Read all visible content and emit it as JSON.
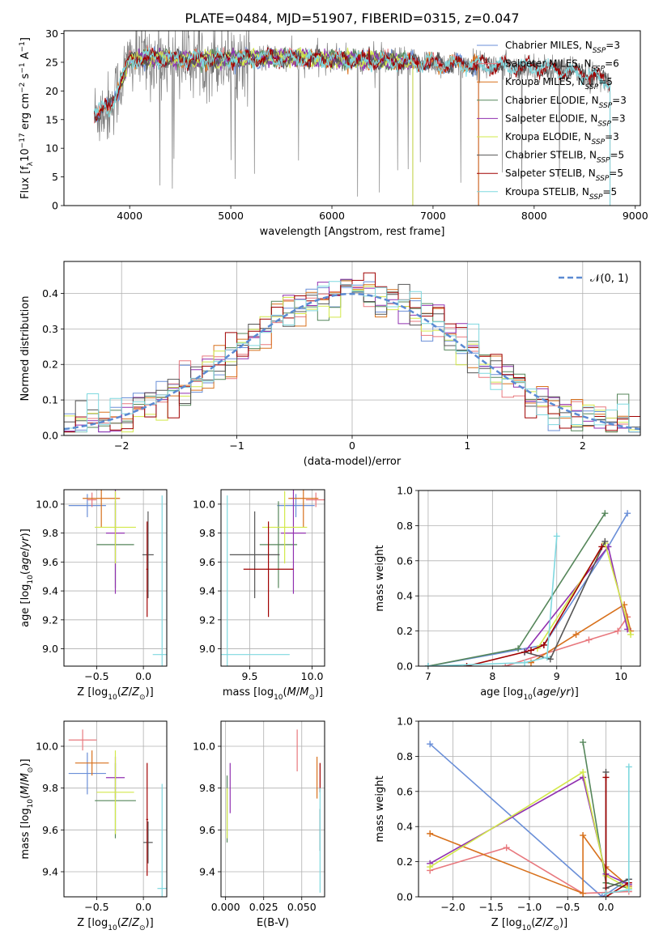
{
  "figure": {
    "title": "PLATE=0484, MJD=51907, FIBERID=0315, z=0.047"
  },
  "colors": {
    "Chabrier MILES": "#6a8fd8",
    "Salpeter MILES": "#e8787e",
    "Kroupa MILES": "#d8711c",
    "Chabrier ELODIE": "#55865a",
    "Salpeter ELODIE": "#9130b0",
    "Kroupa ELODIE": "#d2e84a",
    "Chabrier STELIB": "#555555",
    "Salpeter STELIB": "#a00000",
    "Kroupa STELIB": "#7fd8df",
    "data": "#808080",
    "normal": "#5b8ad2"
  },
  "chart_data": [
    {
      "id": "spectrum",
      "type": "line",
      "xlabel": "wavelength [Angstrom, rest frame]",
      "ylabel": "Flux [f_λ10^-17 erg cm^-2 s^-1 A^-1]",
      "xlim": [
        3350,
        9050
      ],
      "ylim": [
        0,
        30.5
      ],
      "xticks": [
        4000,
        5000,
        6000,
        7000,
        8000,
        9000
      ],
      "yticks": [
        0,
        5,
        10,
        15,
        20,
        25,
        30
      ],
      "legend": {
        "position": "right",
        "entries": [
          {
            "name": "Chabrier MILES",
            "nssp": "N_SSP=3"
          },
          {
            "name": "Salpeter MILES",
            "nssp": "N_SSP=6"
          },
          {
            "name": "Kroupa MILES",
            "nssp": "N_SSP=5"
          },
          {
            "name": "Chabrier ELODIE",
            "nssp": "N_SSP=3"
          },
          {
            "name": "Salpeter ELODIE",
            "nssp": "N_SSP=3"
          },
          {
            "name": "Kroupa ELODIE",
            "nssp": "N_SSP=3"
          },
          {
            "name": "Chabrier STELIB",
            "nssp": "N_SSP=5"
          },
          {
            "name": "Salpeter STELIB",
            "nssp": "N_SSP=5"
          },
          {
            "name": "Kroupa STELIB",
            "nssp": "N_SSP=5"
          }
        ]
      },
      "wavelength_range": [
        3650,
        8750
      ],
      "continuum": [
        [
          3650,
          16
        ],
        [
          3800,
          17
        ],
        [
          3900,
          21
        ],
        [
          4000,
          25.5
        ],
        [
          4200,
          25.8
        ],
        [
          4500,
          25.5
        ],
        [
          5000,
          25.6
        ],
        [
          5500,
          25.8
        ],
        [
          6000,
          25.5
        ],
        [
          6500,
          25.3
        ],
        [
          7000,
          24.8
        ],
        [
          7500,
          24.5
        ],
        [
          8000,
          24.2
        ],
        [
          8500,
          23
        ],
        [
          8750,
          21.5
        ]
      ],
      "model_ranges": {
        "Chabrier MILES": [
          3650,
          7450
        ],
        "Salpeter MILES": [
          3650,
          7450
        ],
        "Kroupa MILES": [
          3650,
          7450
        ],
        "Chabrier ELODIE": [
          3900,
          6800
        ],
        "Salpeter ELODIE": [
          3900,
          6800
        ],
        "Kroupa ELODIE": [
          3900,
          6800
        ],
        "Chabrier STELIB": [
          3650,
          8750
        ],
        "Salpeter STELIB": [
          3650,
          8750
        ],
        "Kroupa STELIB": [
          3650,
          8750
        ]
      }
    },
    {
      "id": "residuals",
      "type": "line",
      "xlabel": "(data-model)/error",
      "ylabel": "Normed distribution",
      "xlim": [
        -2.5,
        2.5
      ],
      "ylim": [
        0,
        0.49
      ],
      "xticks": [
        -2,
        -1,
        0,
        1,
        2
      ],
      "yticks": [
        0.0,
        0.1,
        0.2,
        0.3,
        0.4
      ],
      "grid": true,
      "normal_label": "𝒩(0, 1)",
      "bin_width": 0.1
    },
    {
      "id": "age-vs-Z",
      "type": "scatter",
      "xlabel": "Z [log10(Z/Z⊙)]",
      "ylabel": "age  [log10(age/yr)]",
      "xlim": [
        -0.85,
        0.25
      ],
      "ylim": [
        8.88,
        10.1
      ],
      "xticks": [
        -0.5,
        0.0
      ],
      "yticks": [
        9.0,
        9.2,
        9.4,
        9.6,
        9.8,
        10.0
      ],
      "grid": true,
      "points": [
        {
          "series": "Chabrier MILES",
          "x": -0.6,
          "xerr": 0.2,
          "y": 9.99,
          "yerr": 0.08
        },
        {
          "series": "Salpeter MILES",
          "x": -0.55,
          "xerr": 0.05,
          "y": 10.03,
          "yerr": 0.05
        },
        {
          "series": "Kroupa MILES",
          "x": -0.45,
          "xerr": 0.2,
          "y": 10.04,
          "yerr": 0.2
        },
        {
          "series": "Chabrier ELODIE",
          "x": -0.3,
          "xerr": 0.2,
          "y": 9.72,
          "yerr": 0.3
        },
        {
          "series": "Salpeter ELODIE",
          "x": -0.3,
          "xerr": 0.1,
          "y": 9.8,
          "yerr": 0.42
        },
        {
          "series": "Kroupa ELODIE",
          "x": -0.3,
          "xerr": 0.22,
          "y": 9.84,
          "yerr": 0.25
        },
        {
          "series": "Chabrier STELIB",
          "x": 0.05,
          "xerr": 0.06,
          "y": 9.65,
          "yerr": 0.3
        },
        {
          "series": "Salpeter STELIB",
          "x": 0.04,
          "xerr": 0.01,
          "y": 9.55,
          "yerr": 0.33
        },
        {
          "series": "Kroupa STELIB",
          "x": 0.2,
          "xerr": 0.1,
          "y": 8.96,
          "yerr": 1.1
        }
      ]
    },
    {
      "id": "age-vs-mass",
      "type": "scatter",
      "xlabel": "mass [log10(M/M⊙)]",
      "ylabel": "",
      "xlim": [
        9.27,
        10.1
      ],
      "ylim": [
        8.88,
        10.1
      ],
      "xticks": [
        9.5,
        10.0
      ],
      "yticks": [
        9.0,
        9.2,
        9.4,
        9.6,
        9.8,
        10.0
      ],
      "grid": true,
      "points": [
        {
          "series": "Chabrier MILES",
          "x": 9.87,
          "xerr": 0.15,
          "y": 9.99,
          "yerr": 0.08
        },
        {
          "series": "Salpeter MILES",
          "x": 10.03,
          "xerr": 0.08,
          "y": 10.03,
          "yerr": 0.05
        },
        {
          "series": "Kroupa MILES",
          "x": 9.93,
          "xerr": 0.12,
          "y": 10.04,
          "yerr": 0.2
        },
        {
          "series": "Chabrier ELODIE",
          "x": 9.73,
          "xerr": 0.15,
          "y": 9.72,
          "yerr": 0.3
        },
        {
          "series": "Salpeter ELODIE",
          "x": 9.85,
          "xerr": 0.1,
          "y": 9.8,
          "yerr": 0.42
        },
        {
          "series": "Kroupa ELODIE",
          "x": 9.78,
          "xerr": 0.18,
          "y": 9.84,
          "yerr": 0.25
        },
        {
          "series": "Chabrier STELIB",
          "x": 9.54,
          "xerr": 0.2,
          "y": 9.65,
          "yerr": 0.3
        },
        {
          "series": "Salpeter STELIB",
          "x": 9.65,
          "xerr": 0.2,
          "y": 9.55,
          "yerr": 0.33
        },
        {
          "series": "Kroupa STELIB",
          "x": 9.32,
          "xerr": 0.5,
          "y": 8.96,
          "yerr": 1.1
        }
      ]
    },
    {
      "id": "massweight-vs-age",
      "type": "line",
      "xlabel": "age  [log10(age/yr)]",
      "ylabel": "mass weight",
      "xlim": [
        6.85,
        10.3
      ],
      "ylim": [
        0,
        1.0
      ],
      "xticks": [
        7,
        8,
        9,
        10
      ],
      "yticks": [
        0.0,
        0.2,
        0.4,
        0.6,
        0.8,
        1.0
      ],
      "grid": true,
      "series": [
        {
          "name": "Chabrier MILES",
          "points": [
            [
              7.0,
              0.0
            ],
            [
              8.8,
              0.12
            ],
            [
              9.8,
              0.68
            ],
            [
              10.1,
              0.87
            ]
          ]
        },
        {
          "name": "Salpeter MILES",
          "points": [
            [
              8.2,
              0.0
            ],
            [
              9.5,
              0.15
            ],
            [
              9.95,
              0.2
            ],
            [
              10.1,
              0.28
            ]
          ]
        },
        {
          "name": "Kroupa MILES",
          "points": [
            [
              8.6,
              0.02
            ],
            [
              9.3,
              0.18
            ],
            [
              10.05,
              0.35
            ],
            [
              10.15,
              0.2
            ]
          ]
        },
        {
          "name": "Chabrier ELODIE",
          "points": [
            [
              7.0,
              0.0
            ],
            [
              8.4,
              0.1
            ],
            [
              9.75,
              0.87
            ]
          ]
        },
        {
          "name": "Salpeter ELODIE",
          "points": [
            [
              8.5,
              0.08
            ],
            [
              9.8,
              0.68
            ],
            [
              10.1,
              0.21
            ]
          ]
        },
        {
          "name": "Kroupa ELODIE",
          "points": [
            [
              8.7,
              0.1
            ],
            [
              9.75,
              0.7
            ],
            [
              10.15,
              0.18
            ]
          ]
        },
        {
          "name": "Chabrier STELIB",
          "points": [
            [
              8.5,
              0.08
            ],
            [
              8.9,
              0.04
            ],
            [
              9.75,
              0.71
            ]
          ]
        },
        {
          "name": "Salpeter STELIB",
          "points": [
            [
              7.6,
              0.0
            ],
            [
              8.6,
              0.09
            ],
            [
              8.8,
              0.12
            ],
            [
              9.7,
              0.68
            ]
          ]
        },
        {
          "name": "Kroupa STELIB",
          "points": [
            [
              7.0,
              0.0
            ],
            [
              8.5,
              0.02
            ],
            [
              8.85,
              0.05
            ],
            [
              9.0,
              0.74
            ]
          ]
        }
      ]
    },
    {
      "id": "mass-vs-Z",
      "type": "scatter",
      "xlabel": "Z [log10(Z/Z⊙)]",
      "ylabel": "mass [log10(M/M⊙)]",
      "xlim": [
        -0.85,
        0.25
      ],
      "ylim": [
        9.28,
        10.12
      ],
      "xticks": [
        -0.5,
        0.0
      ],
      "yticks": [
        9.4,
        9.6,
        9.8,
        10.0
      ],
      "grid": true,
      "points": [
        {
          "series": "Chabrier MILES",
          "x": -0.6,
          "xerr": 0.2,
          "y": 9.87,
          "yerr": 0.1
        },
        {
          "series": "Salpeter MILES",
          "x": -0.65,
          "xerr": 0.15,
          "y": 10.03,
          "yerr": 0.05
        },
        {
          "series": "Kroupa MILES",
          "x": -0.55,
          "xerr": 0.18,
          "y": 9.92,
          "yerr": 0.06
        },
        {
          "series": "Chabrier ELODIE",
          "x": -0.3,
          "xerr": 0.22,
          "y": 9.74,
          "yerr": 0.18
        },
        {
          "series": "Salpeter ELODIE",
          "x": -0.3,
          "xerr": 0.1,
          "y": 9.85,
          "yerr": 0.1
        },
        {
          "series": "Kroupa ELODIE",
          "x": -0.3,
          "xerr": 0.2,
          "y": 9.78,
          "yerr": 0.2
        },
        {
          "series": "Chabrier STELIB",
          "x": 0.05,
          "xerr": 0.05,
          "y": 9.54,
          "yerr": 0.1
        },
        {
          "series": "Salpeter STELIB",
          "x": 0.04,
          "xerr": 0.01,
          "y": 9.65,
          "yerr": 0.27
        },
        {
          "series": "Kroupa STELIB",
          "x": 0.2,
          "xerr": 0.05,
          "y": 9.32,
          "yerr": 0.5
        }
      ]
    },
    {
      "id": "mass-vs-ebv",
      "type": "scatter",
      "xlabel": "E(B-V)",
      "ylabel": "",
      "xlim": [
        -0.003,
        0.065
      ],
      "ylim": [
        9.28,
        10.12
      ],
      "xticks": [
        0.0,
        0.025,
        0.05
      ],
      "xticklabels": [
        "0.000",
        "0.025",
        "0.050"
      ],
      "yticks": [
        9.4,
        9.6,
        9.8,
        10.0
      ],
      "grid": true,
      "points": [
        {
          "series": "Salpeter ELODIE",
          "x": 0.003,
          "xerr": 0,
          "y": 9.8,
          "yerr": 0.12
        },
        {
          "series": "Chabrier ELODIE",
          "x": 0.001,
          "xerr": 0,
          "y": 9.7,
          "yerr": 0.16
        },
        {
          "series": "Kroupa ELODIE",
          "x": 0.001,
          "xerr": 0,
          "y": 9.68,
          "yerr": 0.12
        },
        {
          "series": "Salpeter MILES",
          "x": 0.047,
          "xerr": 0,
          "y": 9.98,
          "yerr": 0.1
        },
        {
          "series": "Kroupa MILES",
          "x": 0.06,
          "xerr": 0,
          "y": 9.85,
          "yerr": 0.1
        },
        {
          "series": "Salpeter STELIB",
          "x": 0.062,
          "xerr": 0,
          "y": 9.85,
          "yerr": 0.07
        },
        {
          "series": "Chabrier STELIB",
          "x": 0.062,
          "xerr": 0,
          "y": 9.6,
          "yerr": 0.1
        },
        {
          "series": "Kroupa STELIB",
          "x": 0.062,
          "xerr": 0,
          "y": 9.55,
          "yerr": 0.25
        }
      ]
    },
    {
      "id": "massweight-vs-Z",
      "type": "line",
      "xlabel": "Z [log10(Z/Z⊙)]",
      "ylabel": "mass weight",
      "xlim": [
        -2.45,
        0.45
      ],
      "ylim": [
        0,
        1.0
      ],
      "xticks": [
        -2.0,
        -1.5,
        -1.0,
        -0.5,
        0.0
      ],
      "yticks": [
        0.0,
        0.2,
        0.4,
        0.6,
        0.8,
        1.0
      ],
      "grid": true,
      "series": [
        {
          "name": "Chabrier MILES",
          "points": [
            [
              -2.3,
              0.87
            ],
            [
              -0.05,
              0.0
            ],
            [
              0.3,
              0.1
            ]
          ]
        },
        {
          "name": "Salpeter MILES",
          "points": [
            [
              -2.3,
              0.15
            ],
            [
              -1.3,
              0.28
            ],
            [
              -0.3,
              0.02
            ],
            [
              0.3,
              0.03
            ]
          ]
        },
        {
          "name": "Kroupa MILES",
          "points": [
            [
              -2.3,
              0.36
            ],
            [
              -0.3,
              0.02
            ],
            [
              -0.3,
              0.35
            ],
            [
              0.0,
              0.17
            ],
            [
              0.3,
              0.06
            ]
          ]
        },
        {
          "name": "Chabrier ELODIE",
          "points": [
            [
              -0.3,
              0.88
            ],
            [
              0.0,
              0.08
            ],
            [
              0.3,
              0.05
            ]
          ]
        },
        {
          "name": "Salpeter ELODIE",
          "points": [
            [
              -2.3,
              0.19
            ],
            [
              -0.3,
              0.68
            ],
            [
              0.0,
              0.13
            ],
            [
              0.3,
              0.07
            ]
          ]
        },
        {
          "name": "Kroupa ELODIE",
          "points": [
            [
              -2.3,
              0.17
            ],
            [
              -0.3,
              0.71
            ],
            [
              0.0,
              0.12
            ],
            [
              0.3,
              0.05
            ]
          ]
        },
        {
          "name": "Chabrier STELIB",
          "points": [
            [
              0.0,
              0.71
            ],
            [
              0.0,
              0.05
            ],
            [
              0.3,
              0.1
            ]
          ]
        },
        {
          "name": "Salpeter STELIB",
          "points": [
            [
              0.0,
              0.68
            ],
            [
              0.0,
              0.0
            ],
            [
              0.3,
              0.08
            ]
          ]
        },
        {
          "name": "Kroupa STELIB",
          "points": [
            [
              0.0,
              0.02
            ],
            [
              0.3,
              0.04
            ],
            [
              0.3,
              0.74
            ]
          ]
        }
      ]
    }
  ]
}
